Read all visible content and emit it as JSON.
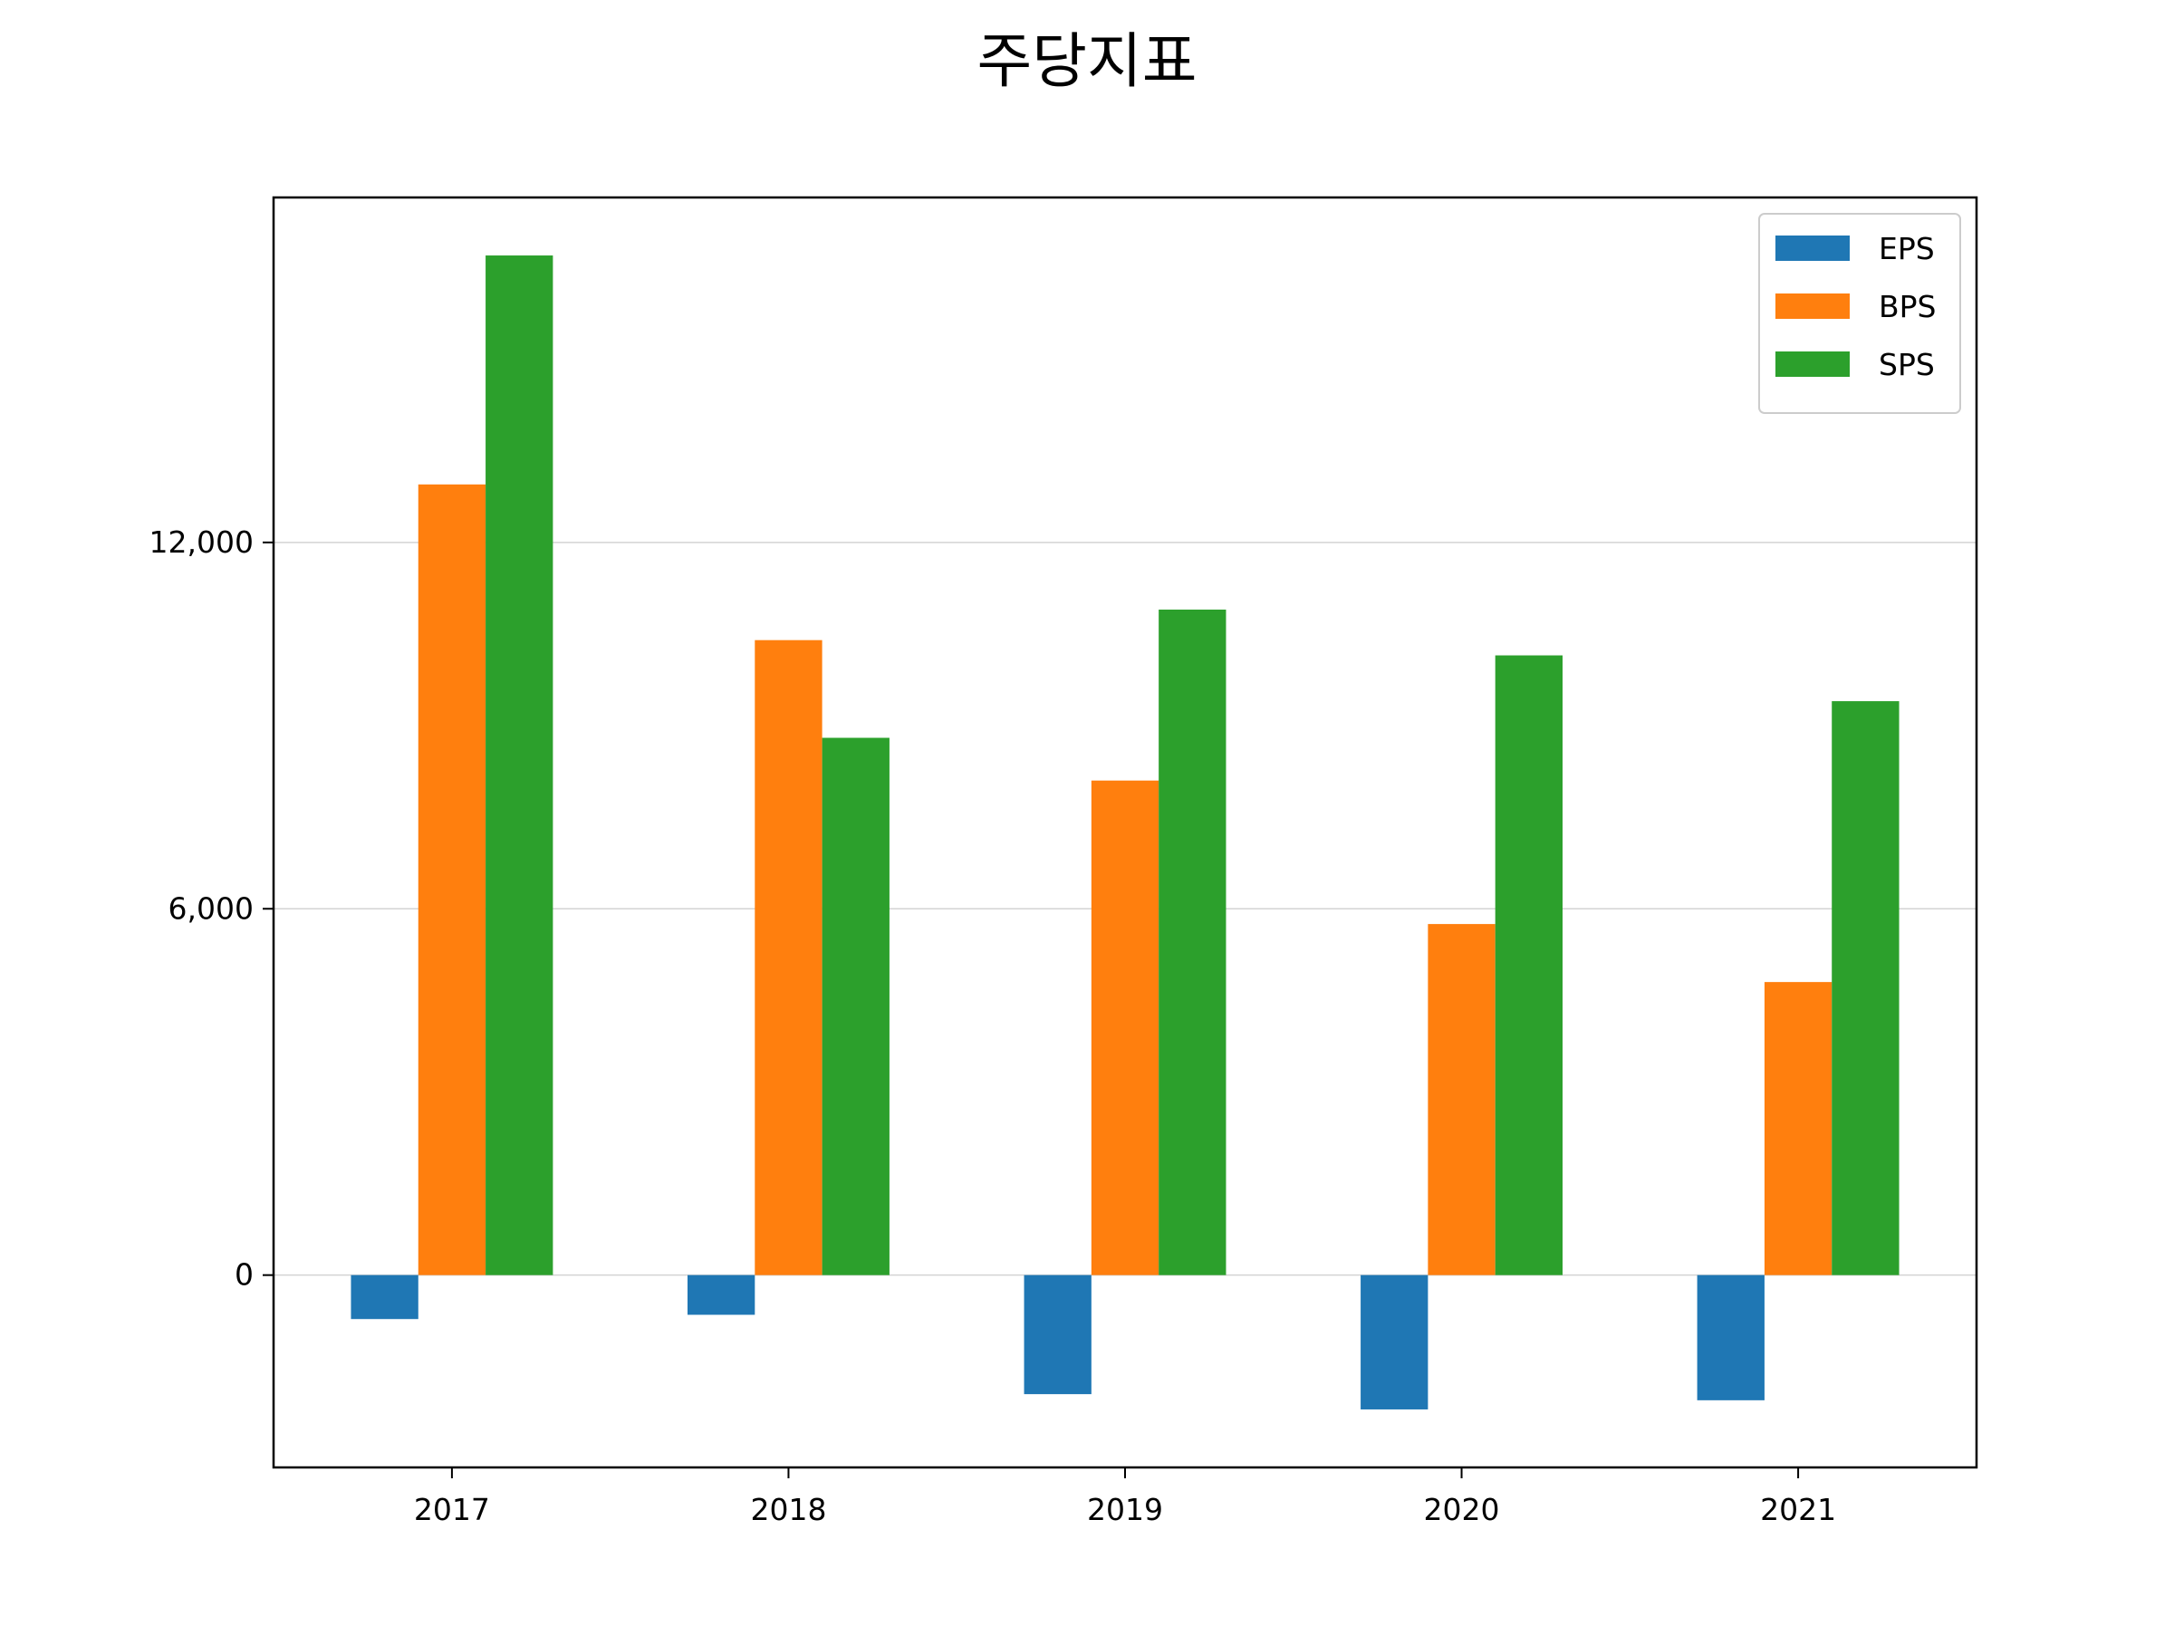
{
  "chart_data": {
    "type": "bar",
    "title": "주당지표",
    "xlabel": "",
    "ylabel": "",
    "categories": [
      "2017",
      "2018",
      "2019",
      "2020",
      "2021"
    ],
    "series": [
      {
        "name": "EPS",
        "color": "#1f77b4",
        "values": [
          -720,
          -650,
          -1950,
          -2200,
          -2050
        ]
      },
      {
        "name": "BPS",
        "color": "#ff7f0e",
        "values": [
          12950,
          10400,
          8100,
          5750,
          4800
        ]
      },
      {
        "name": "SPS",
        "color": "#2ca02c",
        "values": [
          16700,
          8800,
          10900,
          10150,
          9400
        ]
      }
    ],
    "ylim": [
      -3150,
      17650
    ],
    "yticks": [
      0,
      6000,
      12000
    ],
    "ytick_labels": [
      "0",
      "6,000",
      "12,000"
    ],
    "grid": "horizontal",
    "legend_position": "top-right"
  }
}
